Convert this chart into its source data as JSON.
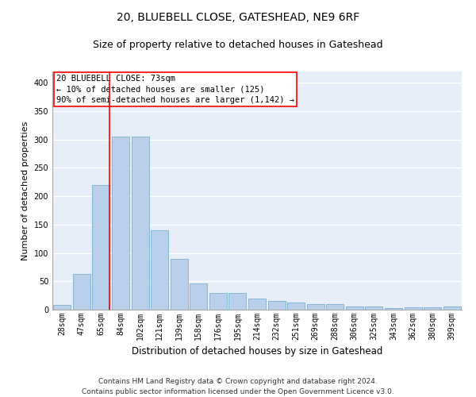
{
  "title": "20, BLUEBELL CLOSE, GATESHEAD, NE9 6RF",
  "subtitle": "Size of property relative to detached houses in Gateshead",
  "xlabel": "Distribution of detached houses by size in Gateshead",
  "ylabel": "Number of detached properties",
  "categories": [
    "28sqm",
    "47sqm",
    "65sqm",
    "84sqm",
    "102sqm",
    "121sqm",
    "139sqm",
    "158sqm",
    "176sqm",
    "195sqm",
    "214sqm",
    "232sqm",
    "251sqm",
    "269sqm",
    "288sqm",
    "306sqm",
    "325sqm",
    "343sqm",
    "362sqm",
    "380sqm",
    "399sqm"
  ],
  "values": [
    8,
    63,
    220,
    305,
    305,
    140,
    90,
    46,
    30,
    30,
    20,
    15,
    12,
    10,
    10,
    5,
    5,
    3,
    4,
    4,
    5
  ],
  "bar_color": "#b8d0ea",
  "bar_edge_color": "#7aafd4",
  "annotation_box_text": "20 BLUEBELL CLOSE: 73sqm\n← 10% of detached houses are smaller (125)\n90% of semi-detached houses are larger (1,142) →",
  "annotation_box_color": "white",
  "annotation_box_edge_color": "red",
  "vline_color": "red",
  "ylim": [
    0,
    420
  ],
  "yticks": [
    0,
    50,
    100,
    150,
    200,
    250,
    300,
    350,
    400
  ],
  "background_color": "#e8eef8",
  "grid_color": "white",
  "footer_line1": "Contains HM Land Registry data © Crown copyright and database right 2024.",
  "footer_line2": "Contains public sector information licensed under the Open Government Licence v3.0.",
  "title_fontsize": 10,
  "subtitle_fontsize": 9,
  "xlabel_fontsize": 8.5,
  "ylabel_fontsize": 8,
  "tick_fontsize": 7,
  "annotation_fontsize": 7.5,
  "footer_fontsize": 6.5
}
